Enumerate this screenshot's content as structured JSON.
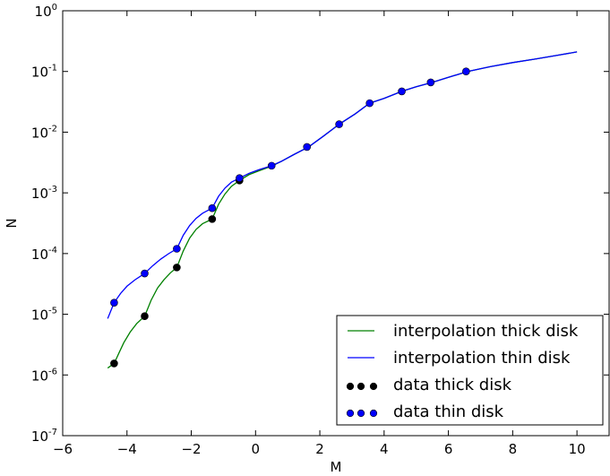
{
  "chart_data": {
    "type": "line",
    "title": "",
    "xlabel": "M",
    "ylabel": "N",
    "xlim": [
      -6,
      11
    ],
    "ylim": [
      1e-07,
      1
    ],
    "yscale": "log",
    "grid": false,
    "legend_position": "lower-right",
    "x_ticks": [
      -6,
      -4,
      -2,
      0,
      2,
      4,
      6,
      8,
      10
    ],
    "x_tick_labels": [
      "−6",
      "−4",
      "−2",
      "0",
      "2",
      "4",
      "6",
      "8",
      "10"
    ],
    "y_ticks": [
      {
        "value": 1,
        "base": "10",
        "exp": "0"
      },
      {
        "value": 0.1,
        "base": "10",
        "exp": "-1"
      },
      {
        "value": 0.01,
        "base": "10",
        "exp": "-2"
      },
      {
        "value": 0.001,
        "base": "10",
        "exp": "-3"
      },
      {
        "value": 0.0001,
        "base": "10",
        "exp": "-4"
      },
      {
        "value": 1e-05,
        "base": "10",
        "exp": "-5"
      },
      {
        "value": 1e-06,
        "base": "10",
        "exp": "-6"
      },
      {
        "value": 1e-07,
        "base": "10",
        "exp": "-7"
      }
    ],
    "series": [
      {
        "name": "interpolation thick disk",
        "kind": "line",
        "color": "#008000",
        "x": [
          -4.6,
          -4.4,
          -4.25,
          -4.1,
          -3.9,
          -3.7,
          -3.45,
          -3.45,
          -3.25,
          -3.05,
          -2.85,
          -2.65,
          -2.45,
          -2.45,
          -2.25,
          -2.05,
          -1.85,
          -1.65,
          -1.35,
          -1.35,
          -1.15,
          -0.95,
          -0.75,
          -0.5,
          -0.5,
          -0.2,
          0.1,
          0.5,
          0.8,
          1.2,
          1.65,
          2.1,
          2.6,
          3.1,
          3.55,
          4.0,
          4.55,
          5.0,
          5.5,
          6.0,
          6.6,
          7.3,
          8.0,
          8.7,
          9.4,
          10.0
        ],
        "y": [
          1.3e-06,
          1.55e-06,
          2.3e-06,
          3.4e-06,
          5.1e-06,
          7e-06,
          9.3e-06,
          9.3e-06,
          1.7e-05,
          2.7e-05,
          3.7e-05,
          4.8e-05,
          5.9e-05,
          5.9e-05,
          0.00011,
          0.00018,
          0.00025,
          0.00031,
          0.00037,
          0.00037,
          0.00065,
          0.00096,
          0.00128,
          0.0016,
          0.0016,
          0.002,
          0.0023,
          0.00275,
          0.0033,
          0.0043,
          0.0057,
          0.0085,
          0.0135,
          0.02,
          0.03,
          0.036,
          0.047,
          0.056,
          0.066,
          0.08,
          0.1,
          0.12,
          0.14,
          0.16,
          0.185,
          0.21
        ]
      },
      {
        "name": "interpolation thin disk",
        "kind": "line",
        "color": "#0000ff",
        "x": [
          -4.6,
          -4.5,
          -4.4,
          -4.2,
          -4.0,
          -3.75,
          -3.45,
          -3.45,
          -3.2,
          -2.95,
          -2.7,
          -2.45,
          -2.45,
          -2.25,
          -2.05,
          -1.85,
          -1.65,
          -1.35,
          -1.35,
          -1.15,
          -0.95,
          -0.75,
          -0.5,
          -0.5,
          -0.2,
          0.1,
          0.5,
          0.8,
          1.2,
          1.65,
          2.1,
          2.6,
          3.1,
          3.55,
          4.0,
          4.55,
          5.0,
          5.5,
          6.0,
          6.6,
          7.3,
          8.0,
          8.7,
          9.4,
          10.0
        ],
        "y": [
          8.5e-06,
          1.15e-05,
          1.55e-05,
          2.2e-05,
          2.9e-05,
          3.7e-05,
          4.7e-05,
          4.7e-05,
          6.3e-05,
          8.1e-05,
          0.0001,
          0.00012,
          0.00012,
          0.0002,
          0.00029,
          0.00038,
          0.00046,
          0.00056,
          0.00056,
          0.00088,
          0.0012,
          0.0015,
          0.00175,
          0.00175,
          0.0021,
          0.0024,
          0.0028,
          0.0033,
          0.0043,
          0.0057,
          0.0085,
          0.0135,
          0.02,
          0.03,
          0.036,
          0.047,
          0.056,
          0.066,
          0.08,
          0.1,
          0.12,
          0.14,
          0.16,
          0.185,
          0.21
        ]
      },
      {
        "name": "data thick disk",
        "kind": "scatter",
        "color": "#000000",
        "x": [
          -4.4,
          -3.45,
          -2.45,
          -1.35,
          -0.5
        ],
        "y": [
          1.55e-06,
          9.3e-06,
          5.9e-05,
          0.00037,
          0.0016
        ]
      },
      {
        "name": "data thin disk",
        "kind": "scatter",
        "color": "#0000ff",
        "x": [
          -4.4,
          -3.45,
          -2.45,
          -1.35,
          -0.5,
          0.5,
          1.6,
          2.6,
          3.55,
          4.55,
          5.45,
          6.55
        ],
        "y": [
          1.55e-05,
          4.7e-05,
          0.00012,
          0.00056,
          0.00175,
          0.0028,
          0.0057,
          0.0135,
          0.03,
          0.047,
          0.066,
          0.1
        ]
      }
    ],
    "legend": [
      {
        "label": "interpolation thick disk",
        "kind": "line",
        "color": "#008000"
      },
      {
        "label": "interpolation thin disk",
        "kind": "line",
        "color": "#0000ff"
      },
      {
        "label": "data thick disk",
        "kind": "scatter",
        "color": "#000000"
      },
      {
        "label": "data thin disk",
        "kind": "scatter",
        "color": "#0000ff"
      }
    ]
  }
}
